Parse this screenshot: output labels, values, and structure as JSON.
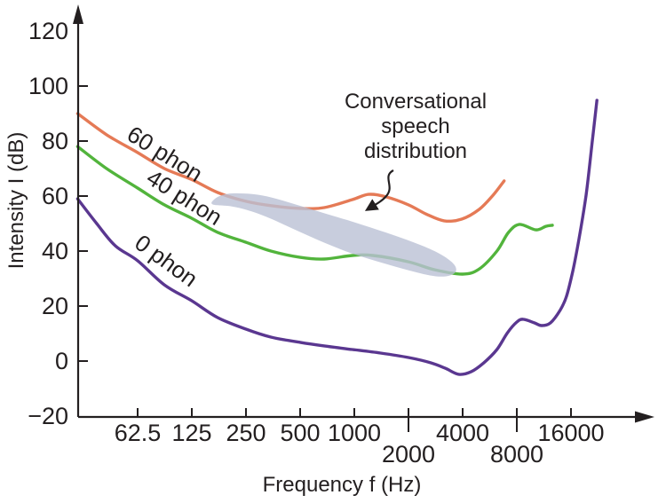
{
  "chart_data": {
    "type": "line",
    "x_scale": "log2",
    "xlabel": "Frequency f (Hz)",
    "ylabel": "Intensity I (dB)",
    "xlim_hz": [
      29,
      24000
    ],
    "ylim_db": [
      -20,
      120
    ],
    "grid": false,
    "axis_color": "#231f20",
    "text_color": "#231f20",
    "x_axis": {
      "ticks": [
        {
          "label": "62.5",
          "value": 62.5,
          "staggered": false
        },
        {
          "label": "125",
          "value": 125,
          "staggered": false
        },
        {
          "label": "250",
          "value": 250,
          "staggered": false
        },
        {
          "label": "500",
          "value": 500,
          "staggered": false
        },
        {
          "label": "1000",
          "value": 1000,
          "staggered": false
        },
        {
          "label": "2000",
          "value": 2000,
          "staggered": true
        },
        {
          "label": "4000",
          "value": 4000,
          "staggered": false
        },
        {
          "label": "8000",
          "value": 8000,
          "staggered": true
        },
        {
          "label": "16000",
          "value": 16000,
          "staggered": false
        }
      ]
    },
    "y_axis": {
      "ticks": [
        {
          "label": "120",
          "value": 120,
          "tick": false
        },
        {
          "label": "100",
          "value": 100,
          "tick": true
        },
        {
          "label": "80",
          "value": 80,
          "tick": true
        },
        {
          "label": "60",
          "value": 60,
          "tick": true
        },
        {
          "label": "40",
          "value": 40,
          "tick": true
        },
        {
          "label": "20",
          "value": 20,
          "tick": true
        },
        {
          "label": "0",
          "value": 0,
          "tick": true
        },
        {
          "label": "−20",
          "value": -20,
          "tick": false
        }
      ]
    },
    "series": [
      {
        "name": "60 phon",
        "color": "#e57a56",
        "points": [
          [
            29,
            90
          ],
          [
            42,
            82.3
          ],
          [
            62.5,
            75.8
          ],
          [
            88,
            70
          ],
          [
            125,
            66
          ],
          [
            174,
            61.3
          ],
          [
            250,
            58.1
          ],
          [
            344,
            56.5
          ],
          [
            500,
            55.5
          ],
          [
            680,
            55.8
          ],
          [
            975,
            58.7
          ],
          [
            1200,
            60.6
          ],
          [
            1500,
            59.7
          ],
          [
            2000,
            56.8
          ],
          [
            2500,
            53.5
          ],
          [
            3150,
            51
          ],
          [
            3950,
            51.6
          ],
          [
            4950,
            55.2
          ],
          [
            5900,
            60.3
          ],
          [
            6800,
            65.5
          ]
        ]
      },
      {
        "name": "40 phon",
        "color": "#52b43c",
        "points": [
          [
            29,
            78
          ],
          [
            42,
            70
          ],
          [
            62.5,
            62.9
          ],
          [
            88,
            56.8
          ],
          [
            125,
            51.9
          ],
          [
            174,
            46.8
          ],
          [
            250,
            43.2
          ],
          [
            344,
            40
          ],
          [
            500,
            37.7
          ],
          [
            680,
            37.1
          ],
          [
            975,
            38.4
          ],
          [
            1270,
            38.4
          ],
          [
            2000,
            36.1
          ],
          [
            2800,
            33.2
          ],
          [
            4000,
            31.6
          ],
          [
            4950,
            33.5
          ],
          [
            6200,
            40
          ],
          [
            7200,
            46.8
          ],
          [
            8300,
            49.7
          ],
          [
            10200,
            47.7
          ],
          [
            11600,
            49
          ],
          [
            12600,
            49.4
          ]
        ]
      },
      {
        "name": "0 phon",
        "color": "#5a3790",
        "points": [
          [
            29,
            59
          ],
          [
            37,
            50
          ],
          [
            47,
            41.9
          ],
          [
            62.5,
            36.5
          ],
          [
            88,
            27.7
          ],
          [
            125,
            21.9
          ],
          [
            174,
            15.8
          ],
          [
            250,
            11.6
          ],
          [
            344,
            8.7
          ],
          [
            500,
            6.8
          ],
          [
            680,
            5.5
          ],
          [
            975,
            4.2
          ],
          [
            1400,
            2.9
          ],
          [
            2000,
            1.3
          ],
          [
            2650,
            -0.6
          ],
          [
            3200,
            -2.6
          ],
          [
            3800,
            -4.8
          ],
          [
            4450,
            -3.9
          ],
          [
            5250,
            -0.6
          ],
          [
            6200,
            4.2
          ],
          [
            7100,
            10.3
          ],
          [
            8000,
            14.2
          ],
          [
            8700,
            15.2
          ],
          [
            10000,
            13.9
          ],
          [
            11000,
            12.9
          ],
          [
            12300,
            13.9
          ],
          [
            13900,
            18.4
          ],
          [
            15100,
            23.5
          ],
          [
            16400,
            32.9
          ],
          [
            17700,
            44.2
          ],
          [
            19400,
            60.3
          ],
          [
            21000,
            79.7
          ],
          [
            22300,
            94.8
          ]
        ]
      }
    ],
    "annotation": {
      "label_lines": [
        "Conversational",
        "speech",
        "distribution"
      ],
      "region_name": "conversational speech distribution",
      "region_fill": "#bac1d4",
      "region_opacity": 0.8,
      "arrow_color": "#231f20"
    }
  }
}
